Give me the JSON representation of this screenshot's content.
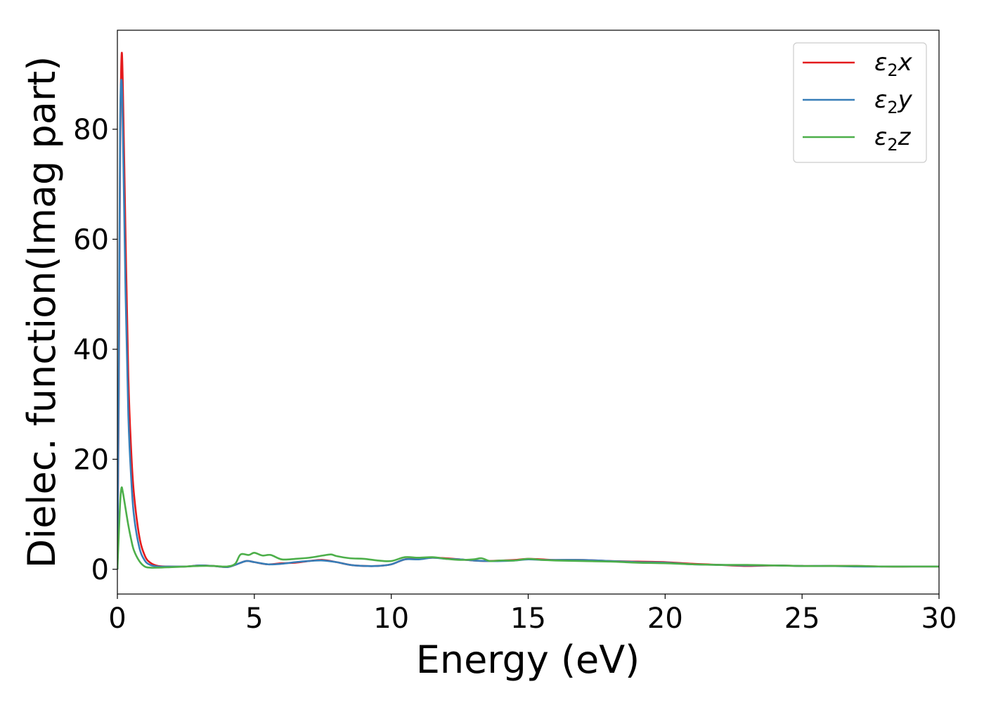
{
  "chart_data": {
    "type": "line",
    "title": "",
    "xlabel": "Energy (eV)",
    "ylabel": "Dielec. function(Imag part)",
    "xlim": [
      0,
      30
    ],
    "ylim": [
      -4.5,
      98
    ],
    "xticks": [
      "0",
      "5",
      "10",
      "15",
      "20",
      "25",
      "30"
    ],
    "yticks": [
      "0",
      "20",
      "40",
      "60",
      "80"
    ],
    "grid": false,
    "legend_position": "top-right",
    "series": [
      {
        "name": "ε₂x",
        "legend_base": "ε",
        "legend_sub": "2",
        "legend_suffix": "x",
        "color": "#e41a1c",
        "x": [
          0,
          0.05,
          0.1,
          0.15,
          0.2,
          0.3,
          0.4,
          0.5,
          0.6,
          0.8,
          1.0,
          1.2,
          1.5,
          2.0,
          2.5,
          3.0,
          3.5,
          4.0,
          4.3,
          4.7,
          5.0,
          5.5,
          6.0,
          6.5,
          7.0,
          7.5,
          8.0,
          8.5,
          9.0,
          9.5,
          10.0,
          10.5,
          11.0,
          11.5,
          12.0,
          12.5,
          13.0,
          13.5,
          14.0,
          14.5,
          15.0,
          15.5,
          16.0,
          17.0,
          18.0,
          19.0,
          20.0,
          21.0,
          22.0,
          23.0,
          24.0,
          25.0,
          26.0,
          27.0,
          28.0,
          29.0,
          30.0
        ],
        "y": [
          0,
          30,
          75,
          93,
          88,
          60,
          35,
          22,
          14,
          6,
          2.5,
          1.2,
          0.6,
          0.5,
          0.5,
          0.7,
          0.6,
          0.4,
          0.8,
          1.5,
          1.3,
          0.9,
          1.1,
          1.2,
          1.5,
          1.7,
          1.3,
          0.8,
          0.6,
          0.6,
          0.9,
          1.8,
          1.9,
          2.1,
          2.0,
          1.8,
          1.6,
          1.5,
          1.6,
          1.7,
          1.9,
          1.8,
          1.7,
          1.7,
          1.5,
          1.4,
          1.3,
          1.0,
          0.8,
          0.6,
          0.7,
          0.6,
          0.6,
          0.6,
          0.5,
          0.5,
          0.5
        ]
      },
      {
        "name": "ε₂y",
        "legend_base": "ε",
        "legend_sub": "2",
        "legend_suffix": "y",
        "color": "#377eb8",
        "x": [
          0,
          0.05,
          0.1,
          0.15,
          0.2,
          0.3,
          0.4,
          0.5,
          0.6,
          0.8,
          1.0,
          1.2,
          1.5,
          2.0,
          2.5,
          3.0,
          3.5,
          4.0,
          4.3,
          4.7,
          5.0,
          5.5,
          6.0,
          6.5,
          7.0,
          7.5,
          8.0,
          8.5,
          9.0,
          9.5,
          10.0,
          10.5,
          11.0,
          11.5,
          12.0,
          12.5,
          13.0,
          13.5,
          14.0,
          14.5,
          15.0,
          15.5,
          16.0,
          17.0,
          18.0,
          19.0,
          20.0,
          21.0,
          22.0,
          23.0,
          24.0,
          25.0,
          26.0,
          27.0,
          28.0,
          29.0,
          30.0
        ],
        "y": [
          0,
          35,
          80,
          89,
          80,
          50,
          28,
          17,
          10,
          4,
          1.6,
          0.8,
          0.5,
          0.5,
          0.5,
          0.7,
          0.6,
          0.4,
          0.8,
          1.5,
          1.3,
          0.9,
          1.0,
          1.3,
          1.5,
          1.6,
          1.3,
          0.8,
          0.6,
          0.6,
          0.9,
          1.8,
          1.8,
          2.1,
          1.9,
          1.8,
          1.6,
          1.5,
          1.5,
          1.6,
          1.8,
          1.7,
          1.7,
          1.7,
          1.5,
          1.3,
          1.2,
          0.9,
          0.8,
          0.7,
          0.7,
          0.6,
          0.6,
          0.5,
          0.5,
          0.5,
          0.5
        ]
      },
      {
        "name": "ε₂z",
        "legend_base": "ε",
        "legend_sub": "2",
        "legend_suffix": "z",
        "color": "#4daf4a",
        "x": [
          0,
          0.05,
          0.1,
          0.15,
          0.2,
          0.3,
          0.4,
          0.5,
          0.6,
          0.8,
          1.0,
          1.2,
          1.5,
          2.0,
          2.5,
          3.0,
          3.5,
          4.0,
          4.3,
          4.5,
          4.8,
          5.0,
          5.3,
          5.6,
          6.0,
          6.5,
          7.0,
          7.5,
          7.8,
          8.0,
          8.5,
          9.0,
          9.5,
          10.0,
          10.5,
          11.0,
          11.5,
          12.0,
          12.5,
          13.0,
          13.3,
          13.6,
          14.0,
          14.5,
          15.0,
          15.5,
          16.0,
          17.0,
          18.0,
          19.0,
          20.0,
          21.0,
          22.0,
          23.0,
          24.0,
          25.0,
          26.0,
          27.0,
          28.0,
          29.0,
          30.0
        ],
        "y": [
          0,
          6,
          12,
          14.8,
          14,
          11,
          8,
          5.5,
          3.5,
          1.5,
          0.5,
          0.3,
          0.3,
          0.4,
          0.5,
          0.6,
          0.6,
          0.5,
          1.0,
          2.7,
          2.6,
          3.0,
          2.5,
          2.6,
          1.8,
          1.9,
          2.1,
          2.5,
          2.7,
          2.4,
          2.0,
          1.9,
          1.6,
          1.5,
          2.2,
          2.1,
          2.2,
          1.9,
          1.7,
          1.8,
          2.0,
          1.5,
          1.6,
          1.6,
          1.9,
          1.7,
          1.6,
          1.5,
          1.4,
          1.2,
          1.1,
          0.9,
          0.8,
          0.8,
          0.7,
          0.6,
          0.6,
          0.6,
          0.5,
          0.5,
          0.5
        ]
      }
    ]
  }
}
